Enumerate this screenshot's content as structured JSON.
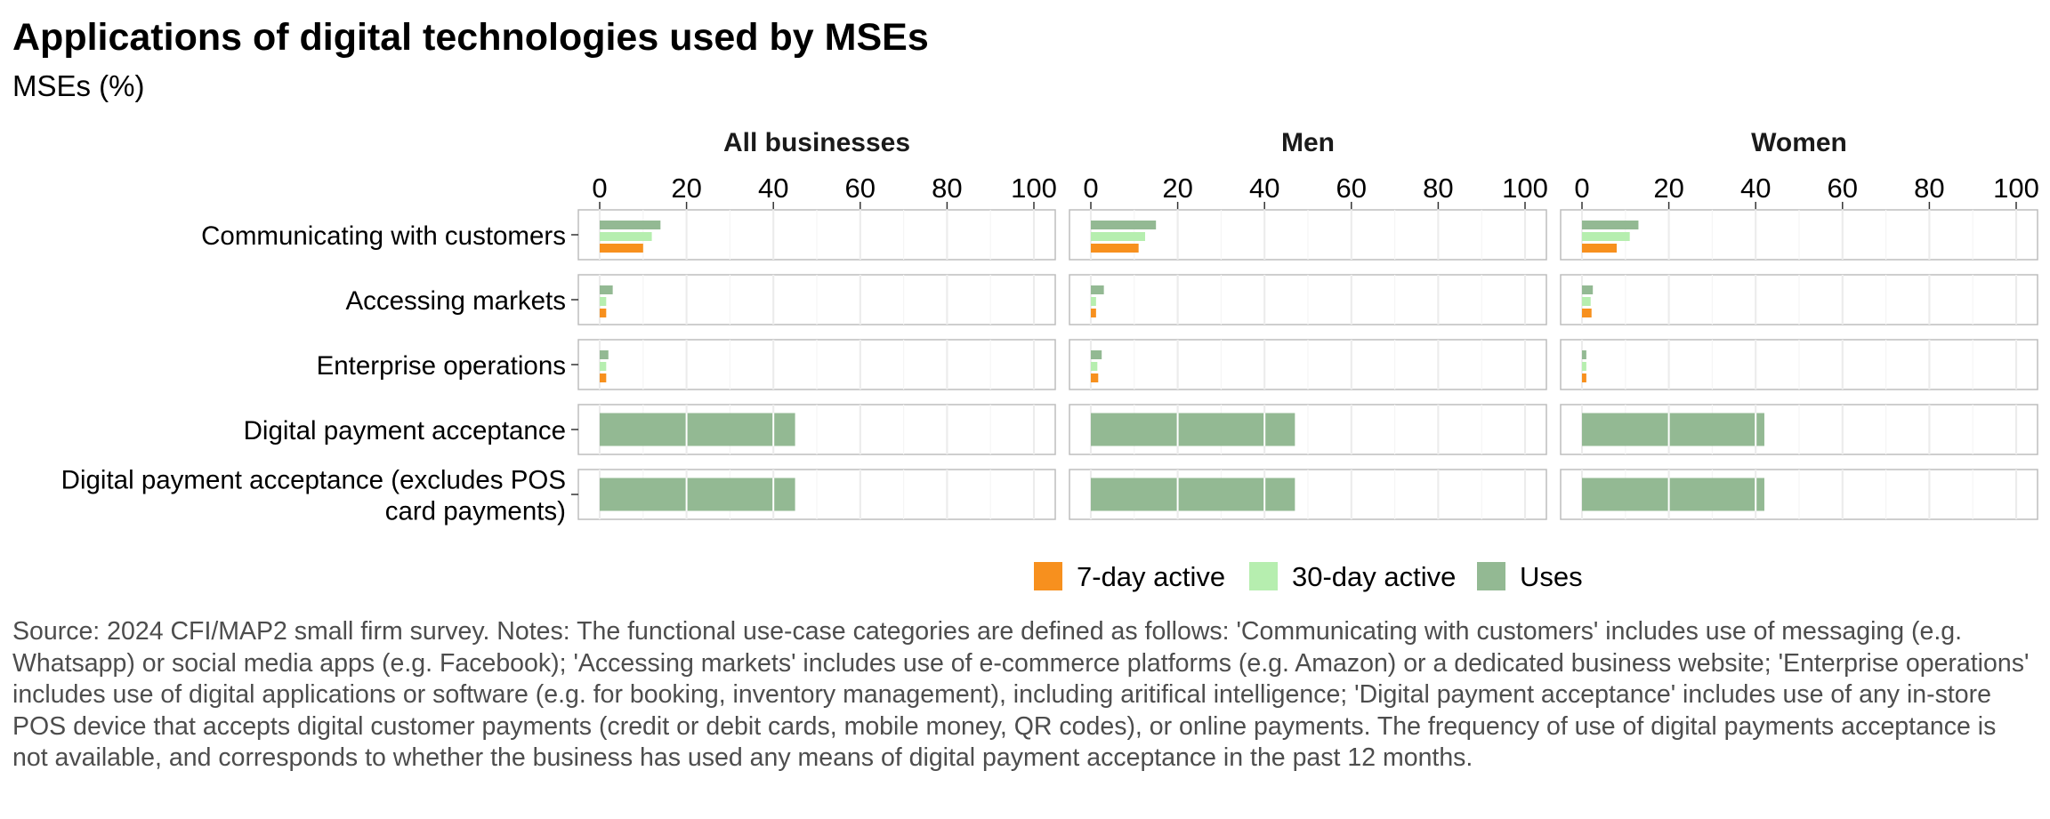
{
  "chart_data": {
    "type": "bar",
    "orientation": "horizontal",
    "title": "Applications of digital technologies used by MSEs",
    "subtitle": "MSEs (%)",
    "categories": [
      "Communicating with customers",
      "Accessing markets",
      "Enterprise operations",
      "Digital payment acceptance",
      "Digital payment acceptance (excludes POS card payments)"
    ],
    "category_lines": [
      [
        "Communicating with customers"
      ],
      [
        "Accessing markets"
      ],
      [
        "Enterprise operations"
      ],
      [
        "Digital payment acceptance"
      ],
      [
        "Digital payment acceptance (excludes POS",
        "card payments)"
      ]
    ],
    "xlim": [
      0,
      100
    ],
    "x_ticks": [
      "0",
      "20",
      "40",
      "60",
      "80",
      "100"
    ],
    "grid": true,
    "legend_position": "bottom",
    "legend": [
      {
        "name": "7-day active",
        "color": "#f7901e"
      },
      {
        "name": "30-day active",
        "color": "#b6eeaf"
      },
      {
        "name": "Uses",
        "color": "#93b993"
      }
    ],
    "panels": [
      {
        "name": "All businesses",
        "series": [
          {
            "name": "Uses",
            "values": [
              14,
              3,
              2,
              45,
              45
            ]
          },
          {
            "name": "30-day active",
            "values": [
              12,
              1.5,
              1.5,
              null,
              null
            ]
          },
          {
            "name": "7-day active",
            "values": [
              10,
              1.5,
              1.5,
              null,
              null
            ]
          }
        ]
      },
      {
        "name": "Men",
        "series": [
          {
            "name": "Uses",
            "values": [
              15,
              3,
              2.5,
              47,
              47
            ]
          },
          {
            "name": "30-day active",
            "values": [
              12.5,
              1.2,
              1.5,
              null,
              null
            ]
          },
          {
            "name": "7-day active",
            "values": [
              11,
              1.2,
              1.7,
              null,
              null
            ]
          }
        ]
      },
      {
        "name": "Women",
        "series": [
          {
            "name": "Uses",
            "values": [
              13,
              2.5,
              1,
              42,
              42
            ]
          },
          {
            "name": "30-day active",
            "values": [
              11,
              2,
              1,
              null,
              null
            ]
          },
          {
            "name": "7-day active",
            "values": [
              8,
              2.2,
              1,
              null,
              null
            ]
          }
        ]
      }
    ]
  },
  "source_note": "Source: 2024 CFI/MAP2 small firm survey. Notes: The functional use-case categories are defined as follows: 'Communicating with customers' includes use of messaging (e.g. Whatsapp) or social media apps (e.g. Facebook); 'Accessing markets' includes use of e-commerce platforms (e.g. Amazon) or a dedicated business website; 'Enterprise operations' includes use of digital applications or software (e.g. for booking, inventory management), including aritifical intelligence; 'Digital payment acceptance' includes use of any in-store POS device that accepts digital customer payments (credit or debit cards, mobile money, QR codes), or online payments. The frequency of use of digital payments acceptance is not available, and corresponds to whether the business has used any means of digital payment acceptance in the past 12 months."
}
